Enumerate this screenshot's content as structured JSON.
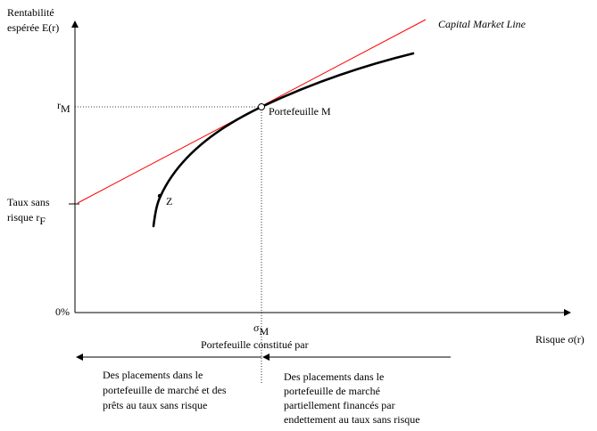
{
  "y_axis_label": {
    "line1": "Rentabilité",
    "line2": "espérée E(r)"
  },
  "x_axis_label": "Risque σ(r)",
  "cml_label": "Capital Market Line",
  "rm": {
    "base": "r",
    "sub": "M"
  },
  "sigma_m": {
    "base": "σ",
    "sub": "M"
  },
  "rf_label": {
    "line1": "Taux sans",
    "line2_base": "risque r",
    "line2_sub": "F"
  },
  "zero_label": "0%",
  "portfolio_m_label": "Portefeuille M",
  "point_z_label": "Z",
  "composition_title": "Portefeuille constitué par",
  "left_region": {
    "line1": "Des placements dans le",
    "line2": "portefeuille de marché et des",
    "line3": "prêts au taux sans risque"
  },
  "right_region": {
    "line1": "Des placements dans le",
    "line2": "portefeuille de marché",
    "line3": "partiellement financés par",
    "line4": "endettement au taux sans risque"
  },
  "colors": {
    "cml_line": "#ff0000",
    "axes": "#000000",
    "frontier": "#000000",
    "guide": "#000000"
  }
}
